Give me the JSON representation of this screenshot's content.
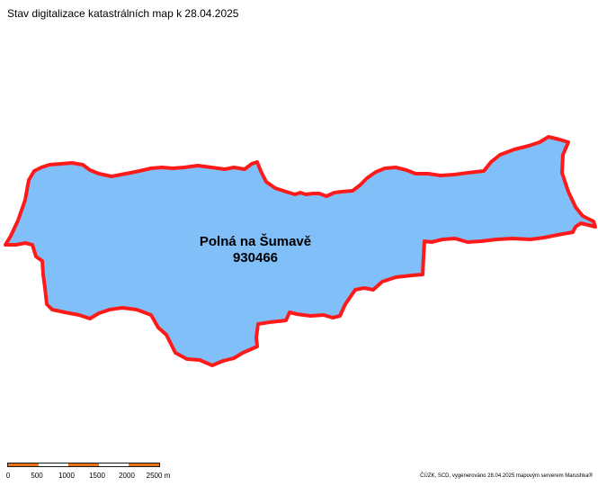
{
  "title": "Stav digitalizace katastrálních map k 28.04.2025",
  "area": {
    "name": "Polná na Šumavě",
    "code": "930466",
    "fill_color": "#80bff8",
    "border_color": "#ff1a1a"
  },
  "scale": {
    "labels": [
      "0",
      "500",
      "1000",
      "1500",
      "2000",
      "2500 m"
    ],
    "colors": [
      "#e8731c",
      "#ffffff"
    ]
  },
  "credit": "ČÚZK, SCD, vygenerováno 28.04.2025 mapovým serverem Marushka®"
}
